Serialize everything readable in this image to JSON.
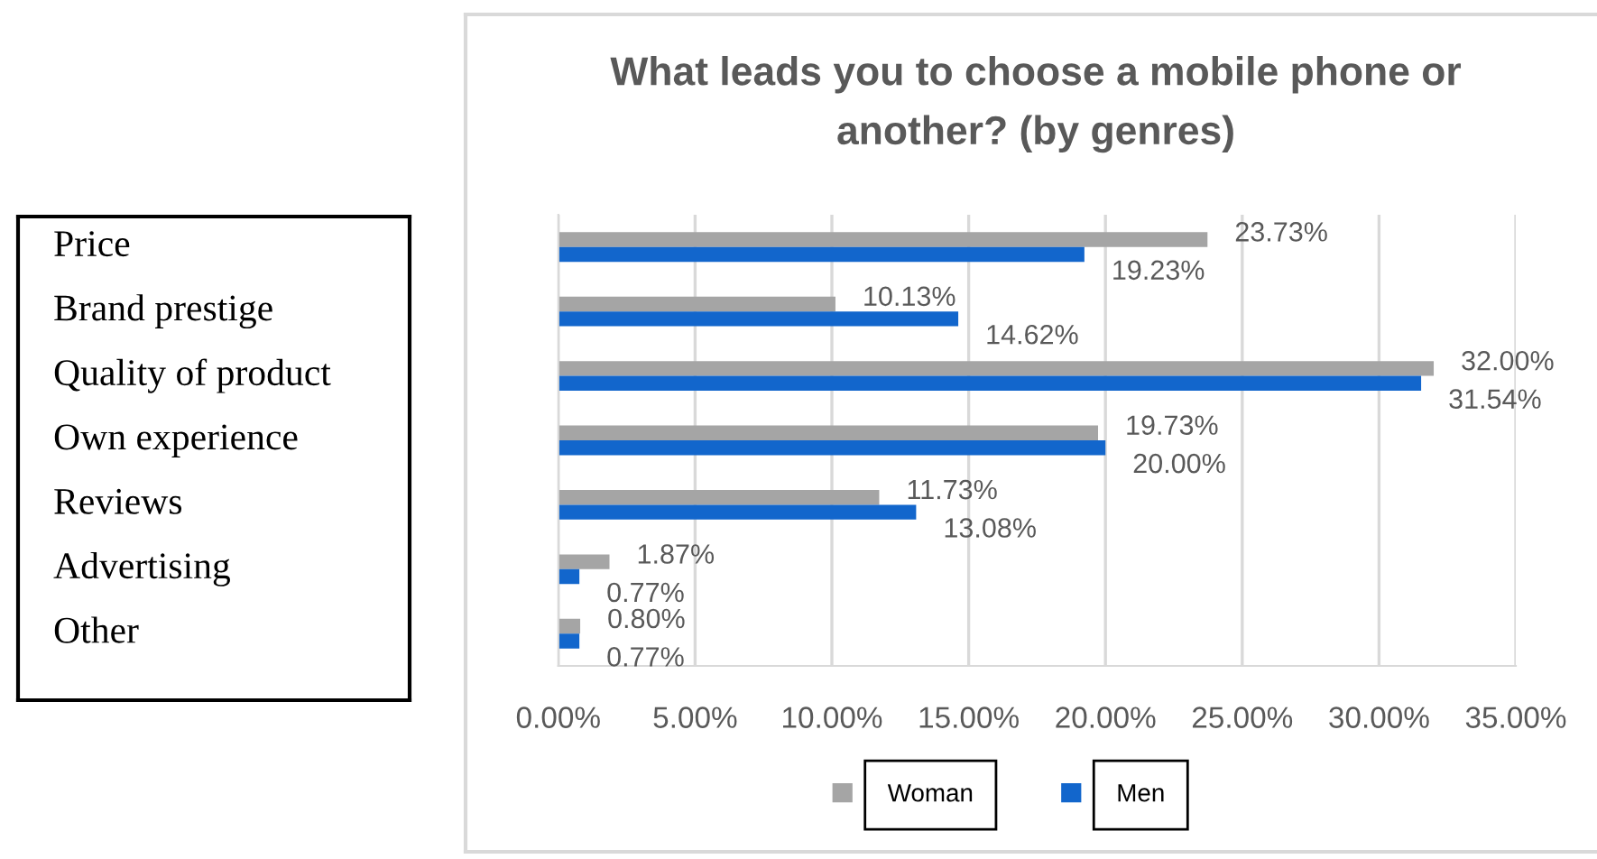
{
  "chart_data": {
    "type": "bar",
    "orientation": "horizontal",
    "title": "What leads you to choose a mobile phone or\nanother? (by genres)",
    "categories": [
      "Price",
      "Brand prestige",
      "Quality of product",
      "Own experience",
      "Reviews",
      "Advertising",
      "Other"
    ],
    "series": [
      {
        "name": "Woman",
        "color": "#a5a5a5",
        "values": [
          23.73,
          10.13,
          32.0,
          19.73,
          11.73,
          1.87,
          0.8
        ],
        "value_labels": [
          "23.73%",
          "10.13%",
          "32.00%",
          "19.73%",
          "11.73%",
          "1.87%",
          "0.80%"
        ]
      },
      {
        "name": "Men",
        "color": "#1266cc",
        "values": [
          19.23,
          14.62,
          31.54,
          20.0,
          13.08,
          0.77,
          0.77
        ],
        "value_labels": [
          "19.23%",
          "14.62%",
          "31.54%",
          "20.00%",
          "13.08%",
          "0.77%",
          "0.77%"
        ]
      }
    ],
    "xlim": [
      0,
      35
    ],
    "xticks": [
      {
        "value": 0,
        "label": "0.00%"
      },
      {
        "value": 5,
        "label": "5.00%"
      },
      {
        "value": 10,
        "label": "10.00%"
      },
      {
        "value": 15,
        "label": "15.00%"
      },
      {
        "value": 20,
        "label": "20.00%"
      },
      {
        "value": 25,
        "label": "25.00%"
      },
      {
        "value": 30,
        "label": "30.00%"
      },
      {
        "value": 35,
        "label": "35.00%"
      }
    ],
    "grid": "x",
    "legend": "bottom"
  }
}
